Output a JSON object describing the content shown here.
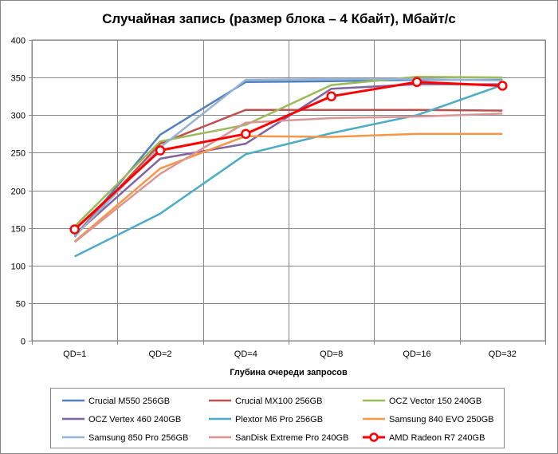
{
  "chart_data": {
    "type": "line",
    "title": "Случайная запись (размер блока – 4 Кбайт), Мбайт/с",
    "xlabel": "Глубина очереди запросов",
    "ylabel": "",
    "categories": [
      "QD=1",
      "QD=2",
      "QD=4",
      "QD=8",
      "QD=16",
      "QD=32"
    ],
    "ylim": [
      0,
      400
    ],
    "yticks": [
      "0",
      "50",
      "100",
      "150",
      "200",
      "250",
      "300",
      "350",
      "400"
    ],
    "grid": true,
    "legend_position": "bottom",
    "series": [
      {
        "name": "Crucial M550 256GB",
        "color": "#4f81bd",
        "values": [
          138,
          274,
          344,
          345,
          347,
          347
        ]
      },
      {
        "name": "Crucial MX100 256GB",
        "color": "#c0504d",
        "values": [
          140,
          262,
          307,
          307,
          307,
          306
        ]
      },
      {
        "name": "OCZ Vector 150 240GB",
        "color": "#9bbb59",
        "values": [
          152,
          265,
          287,
          340,
          351,
          350
        ]
      },
      {
        "name": "OCZ Vertex 460 240GB",
        "color": "#8064a2",
        "values": [
          141,
          242,
          262,
          335,
          341,
          341
        ]
      },
      {
        "name": "Plextor M6 Pro 256GB",
        "color": "#4bacc6",
        "values": [
          112,
          169,
          248,
          276,
          300,
          340
        ]
      },
      {
        "name": "Samsung 840 EVO 250GB",
        "color": "#f79646",
        "values": [
          132,
          229,
          272,
          271,
          275,
          275
        ]
      },
      {
        "name": "Samsung 850 Pro 256GB",
        "color": "#95b3d7",
        "values": [
          139,
          257,
          347,
          348,
          348,
          346
        ]
      },
      {
        "name": "SanDisk Extreme Pro 240GB",
        "color": "#d99694",
        "values": [
          131,
          222,
          290,
          296,
          298,
          302
        ]
      },
      {
        "name": "AMD Radeon R7 240GB",
        "color": "#ff0000",
        "values": [
          148,
          253,
          275,
          325,
          344,
          339
        ],
        "markers": true
      }
    ]
  }
}
